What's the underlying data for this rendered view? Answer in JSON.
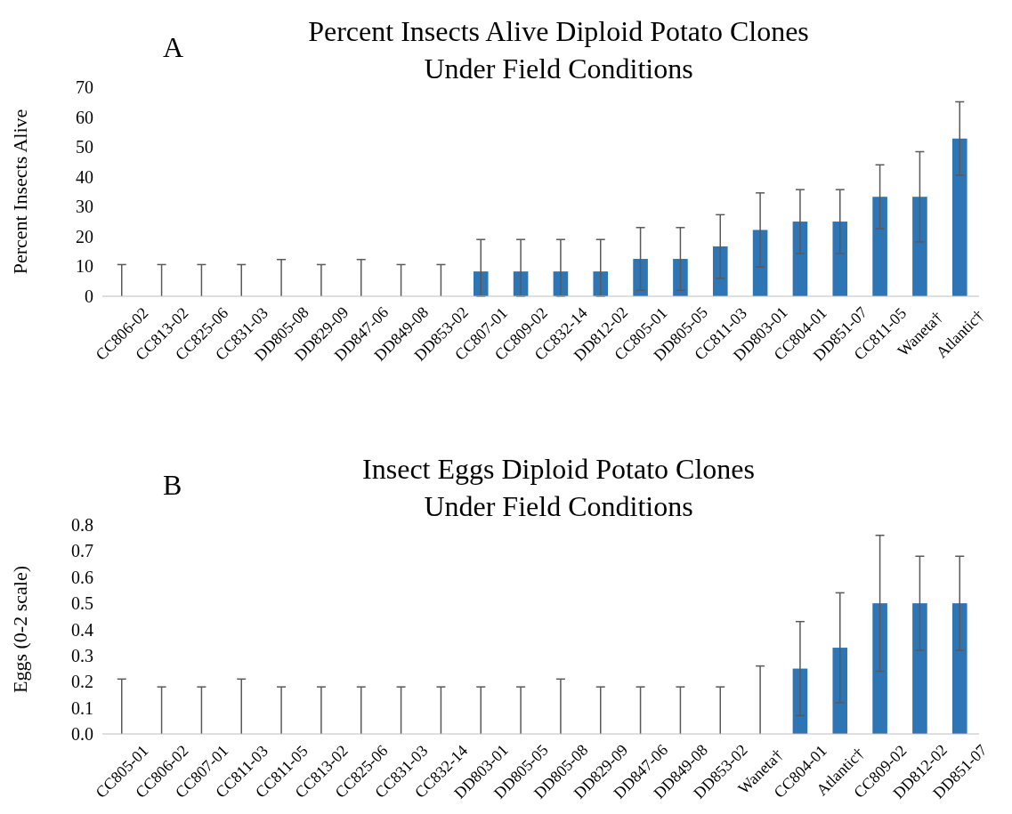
{
  "chart_data": [
    {
      "type": "bar",
      "title": "Percent Insects Alive Diploid Potato Clones\nUnder Field Conditions",
      "ylabel": "Percent Insects Alive",
      "annotations": [
        "A"
      ],
      "categories": [
        "CC806-02",
        "CC813-02",
        "CC825-06",
        "CC831-03",
        "DD805-08",
        "DD829-09",
        "DD847-06",
        "DD849-08",
        "DD853-02",
        "CC807-01",
        "CC809-02",
        "CC832-14",
        "DD812-02",
        "CC805-01",
        "DD805-05",
        "CC811-03",
        "DD803-01",
        "CC804-01",
        "DD851-07",
        "CC811-05",
        "Waneta†",
        "Atlantic†"
      ],
      "values": [
        0,
        0,
        0,
        0,
        0,
        0,
        0,
        0,
        0,
        8.3,
        8.3,
        8.3,
        8.3,
        12.5,
        12.5,
        16.7,
        22.2,
        25,
        25,
        33.3,
        33.3,
        52.8
      ],
      "errors": [
        [
          0,
          10.6
        ],
        [
          0,
          10.6
        ],
        [
          0,
          10.6
        ],
        [
          0,
          10.6
        ],
        [
          0,
          12.3
        ],
        [
          0,
          10.6
        ],
        [
          0,
          12.3
        ],
        [
          0,
          10.6
        ],
        [
          0,
          10.6
        ],
        [
          0,
          19
        ],
        [
          0,
          19
        ],
        [
          0,
          19
        ],
        [
          0,
          19
        ],
        [
          2,
          23
        ],
        [
          2,
          23
        ],
        [
          6,
          27.3
        ],
        [
          9.8,
          34.6
        ],
        [
          14.3,
          35.7
        ],
        [
          14.3,
          35.7
        ],
        [
          22.6,
          44
        ],
        [
          18.2,
          48.4
        ],
        [
          40.5,
          65.1
        ]
      ],
      "color": "#2e75b6",
      "ylim": [
        0,
        70
      ],
      "yticks": [
        0,
        10,
        20,
        30,
        40,
        50,
        60,
        70
      ],
      "grid": false
    },
    {
      "type": "bar",
      "title": "Insect Eggs Diploid Potato Clones\nUnder Field Conditions",
      "ylabel": "Eggs (0-2 scale)",
      "annotations": [
        "B"
      ],
      "categories": [
        "CC805-01",
        "CC806-02",
        "CC807-01",
        "CC811-03",
        "CC811-05",
        "CC813-02",
        "CC825-06",
        "CC831-03",
        "CC832-14",
        "DD803-01",
        "DD805-05",
        "DD805-08",
        "DD829-09",
        "DD847-06",
        "DD849-08",
        "DD853-02",
        "Waneta†",
        "CC804-01",
        "Atlantic†",
        "CC809-02",
        "DD812-02",
        "DD851-07"
      ],
      "values": [
        0,
        0,
        0,
        0,
        0,
        0,
        0,
        0,
        0,
        0,
        0,
        0,
        0,
        0,
        0,
        0,
        0,
        0.25,
        0.33,
        0.5,
        0.5,
        0.5
      ],
      "errors": [
        [
          0,
          0.21
        ],
        [
          0,
          0.18
        ],
        [
          0,
          0.18
        ],
        [
          0,
          0.21
        ],
        [
          0,
          0.18
        ],
        [
          0,
          0.18
        ],
        [
          0,
          0.18
        ],
        [
          0,
          0.18
        ],
        [
          0,
          0.18
        ],
        [
          0,
          0.18
        ],
        [
          0,
          0.18
        ],
        [
          0,
          0.21
        ],
        [
          0,
          0.18
        ],
        [
          0,
          0.18
        ],
        [
          0,
          0.18
        ],
        [
          0,
          0.18
        ],
        [
          0,
          0.26
        ],
        [
          0.07,
          0.43
        ],
        [
          0.12,
          0.54
        ],
        [
          0.24,
          0.76
        ],
        [
          0.32,
          0.68
        ],
        [
          0.32,
          0.68
        ]
      ],
      "color": "#2e75b6",
      "ylim": [
        0,
        0.8
      ],
      "yticks": [
        {
          "value": 0,
          "label": "0.0"
        },
        0.1,
        0.2,
        0.3,
        0.4,
        0.5,
        0.6,
        0.7,
        0.8
      ],
      "grid": false
    }
  ]
}
